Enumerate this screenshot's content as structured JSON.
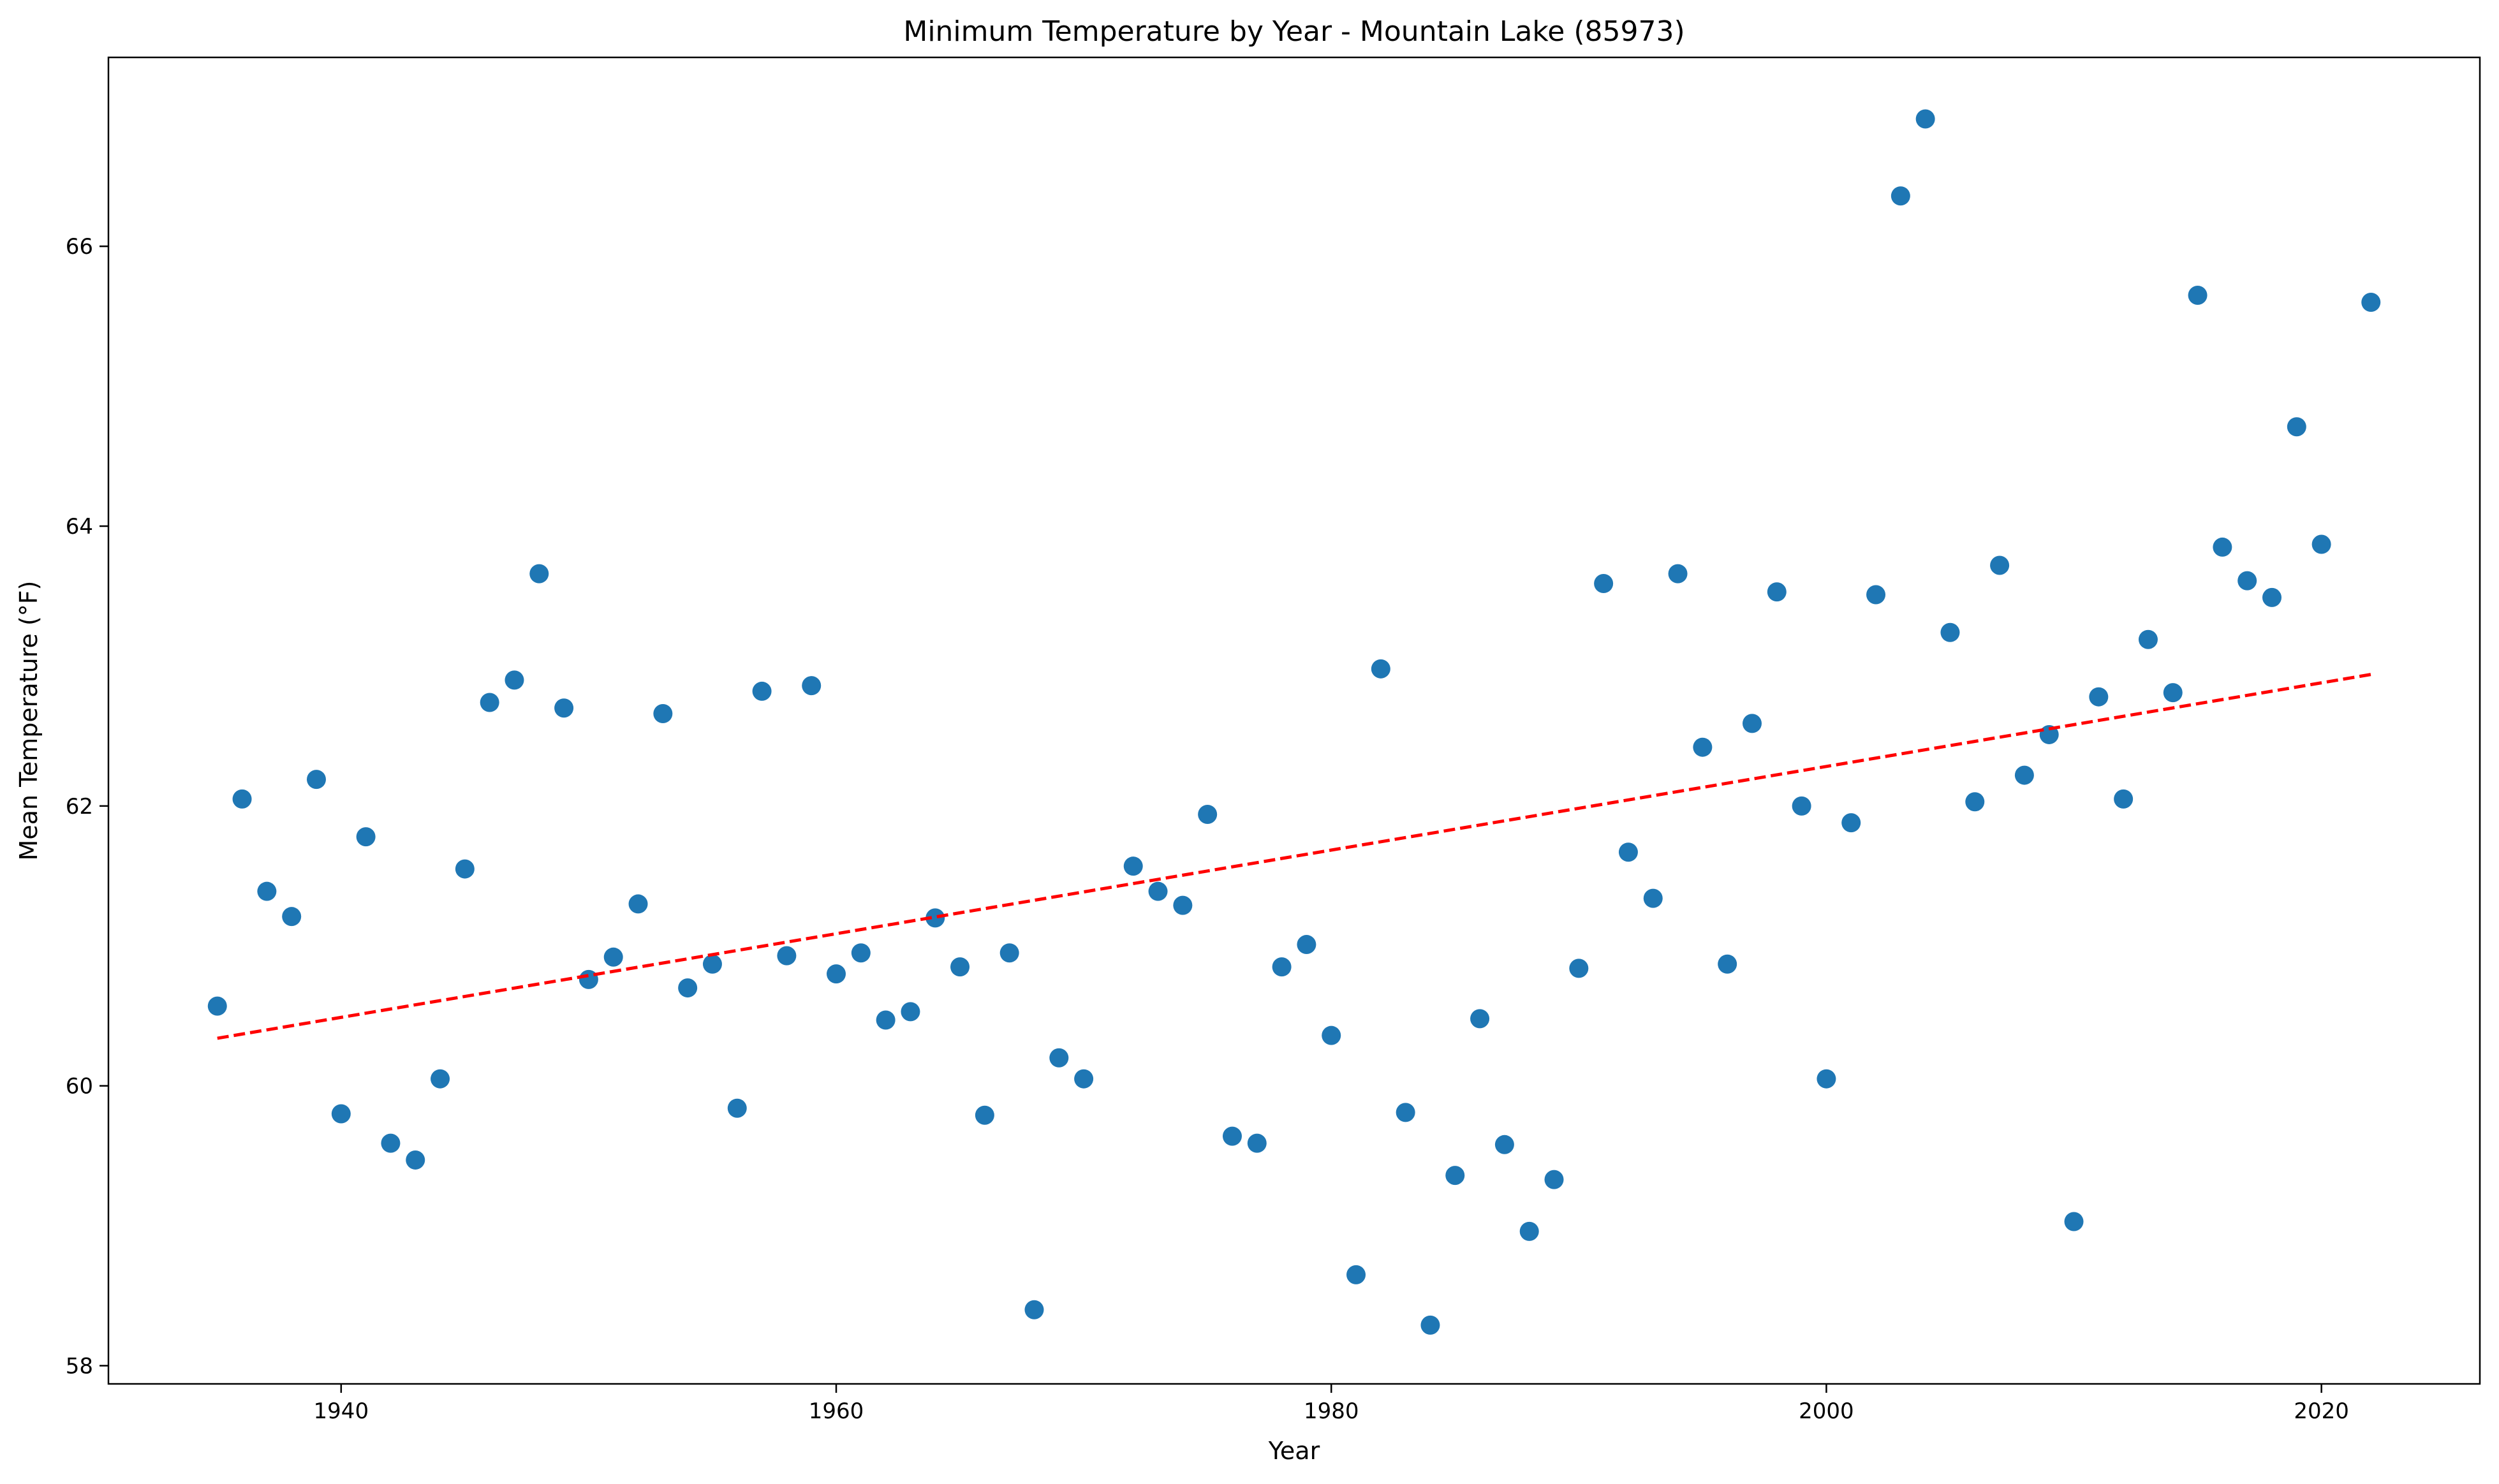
{
  "chart_data": {
    "type": "scatter",
    "title": "Minimum Temperature by Year - Mountain Lake (85973)",
    "xlabel": "Year",
    "ylabel": "Mean Temperature (°F)",
    "xlim": [
      1930.6,
      2026.4
    ],
    "ylim": [
      57.87,
      67.35
    ],
    "xticks": [
      1940,
      1960,
      1980,
      2000,
      2020
    ],
    "yticks": [
      58,
      60,
      62,
      64,
      66
    ],
    "grid": false,
    "legend": "none",
    "point_color": "#1f77b4",
    "trend_color": "#ff0000",
    "series": [
      {
        "x": [
          1935,
          1936,
          1937,
          1938,
          1939,
          1940,
          1941,
          1942,
          1943,
          1944,
          1945,
          1946,
          1947,
          1948,
          1949,
          1950,
          1951,
          1952,
          1953,
          1954,
          1955,
          1956,
          1957,
          1958,
          1959,
          1960,
          1961,
          1962,
          1963,
          1964,
          1965,
          1966,
          1967,
          1968,
          1969,
          1970,
          1972,
          1973,
          1974,
          1975,
          1976,
          1977,
          1978,
          1979,
          1980,
          1981,
          1982,
          1983,
          1984,
          1985,
          1986,
          1987,
          1988,
          1989,
          1990,
          1991,
          1992,
          1993,
          1994,
          1995,
          1996,
          1997,
          1998,
          1999,
          2000,
          2001,
          2002,
          2003,
          2004,
          2005,
          2006,
          2007,
          2008,
          2009,
          2010,
          2011,
          2012,
          2013,
          2014,
          2015,
          2016,
          2017,
          2018,
          2019,
          2020,
          2022
        ],
        "y": [
          60.57,
          62.05,
          61.39,
          61.21,
          62.19,
          59.8,
          61.78,
          59.59,
          59.47,
          60.05,
          61.55,
          62.74,
          62.9,
          63.66,
          62.7,
          60.76,
          60.92,
          61.3,
          62.66,
          60.7,
          60.87,
          59.84,
          62.82,
          60.93,
          62.86,
          60.8,
          60.95,
          60.47,
          60.53,
          61.2,
          60.85,
          59.79,
          60.95,
          58.4,
          60.2,
          60.05,
          61.57,
          61.39,
          61.29,
          61.94,
          59.64,
          59.59,
          60.85,
          61.01,
          60.36,
          58.65,
          62.98,
          59.81,
          58.29,
          59.36,
          60.48,
          59.58,
          58.96,
          59.33,
          60.84,
          63.59,
          61.67,
          61.34,
          63.66,
          62.42,
          60.87,
          62.59,
          63.53,
          62.0,
          60.05,
          61.88,
          63.51,
          66.36,
          66.91,
          63.24,
          62.03,
          63.72,
          62.22,
          62.51,
          59.03,
          62.78,
          62.05,
          63.19,
          62.81,
          65.65,
          63.85,
          63.61,
          63.49,
          64.71,
          63.87,
          65.6
        ]
      }
    ],
    "trendline": {
      "x": [
        1935,
        2022
      ],
      "y": [
        60.34,
        62.94
      ]
    }
  }
}
